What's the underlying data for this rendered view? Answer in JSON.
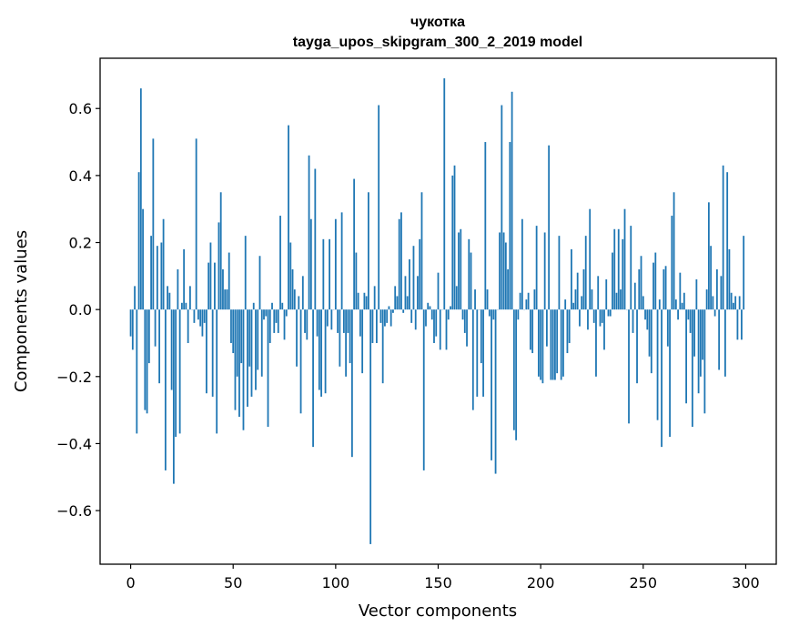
{
  "chart_data": {
    "type": "bar",
    "title": "чукотка",
    "subtitle": "tayga_upos_skipgram_300_2_2019 model",
    "xlabel": "Vector components",
    "ylabel": "Components values",
    "xlim": [
      -14.9,
      314.9
    ],
    "ylim": [
      -0.76,
      0.75
    ],
    "xticks": [
      0,
      50,
      100,
      150,
      200,
      250,
      300
    ],
    "xtick_labels": [
      "0",
      "50",
      "100",
      "150",
      "200",
      "250",
      "300"
    ],
    "yticks": [
      -0.6,
      -0.4,
      -0.2,
      0.0,
      0.2,
      0.4,
      0.6
    ],
    "ytick_labels": [
      "−0.6",
      "−0.4",
      "−0.2",
      "0.0",
      "0.2",
      "0.4",
      "0.6"
    ],
    "grid": false,
    "legend": "none",
    "bar_color": "#1f77b4",
    "values": [
      -0.08,
      -0.12,
      0.07,
      -0.37,
      0.41,
      0.66,
      0.3,
      -0.3,
      -0.31,
      -0.16,
      0.22,
      0.51,
      -0.11,
      0.19,
      -0.22,
      0.2,
      0.27,
      -0.48,
      0.07,
      0.05,
      -0.24,
      -0.52,
      -0.38,
      0.12,
      -0.37,
      0.02,
      0.18,
      0.02,
      -0.1,
      0.07,
      0.0,
      -0.04,
      0.51,
      -0.03,
      -0.05,
      -0.08,
      -0.04,
      -0.25,
      0.14,
      0.2,
      -0.26,
      0.14,
      -0.37,
      0.26,
      0.35,
      0.12,
      0.06,
      0.06,
      0.17,
      -0.1,
      -0.13,
      -0.3,
      -0.2,
      -0.32,
      -0.16,
      -0.36,
      0.22,
      -0.29,
      -0.17,
      -0.26,
      0.02,
      -0.24,
      -0.18,
      0.16,
      -0.2,
      -0.03,
      -0.02,
      -0.35,
      -0.1,
      0.02,
      -0.07,
      -0.04,
      -0.07,
      0.28,
      0.02,
      -0.09,
      -0.02,
      0.55,
      0.2,
      0.12,
      0.06,
      -0.17,
      0.04,
      -0.31,
      0.1,
      -0.07,
      -0.09,
      0.46,
      0.27,
      -0.41,
      0.42,
      -0.08,
      -0.24,
      -0.26,
      0.21,
      -0.25,
      -0.05,
      0.21,
      -0.06,
      0.0,
      0.27,
      -0.07,
      -0.17,
      0.29,
      -0.07,
      -0.2,
      -0.07,
      -0.16,
      -0.44,
      0.39,
      0.17,
      0.05,
      -0.08,
      -0.19,
      0.05,
      0.04,
      0.35,
      -0.7,
      -0.1,
      0.07,
      -0.1,
      0.61,
      -0.04,
      -0.22,
      -0.05,
      -0.04,
      0.01,
      -0.05,
      -0.01,
      0.07,
      0.04,
      0.27,
      0.29,
      -0.01,
      0.1,
      0.04,
      0.15,
      -0.04,
      0.19,
      -0.06,
      0.1,
      0.21,
      0.35,
      -0.48,
      -0.05,
      0.02,
      0.01,
      -0.03,
      -0.1,
      -0.08,
      0.11,
      -0.12,
      0.0,
      0.69,
      -0.12,
      -0.03,
      0.01,
      0.4,
      0.43,
      0.07,
      0.23,
      0.24,
      -0.03,
      -0.07,
      -0.11,
      0.21,
      0.17,
      -0.3,
      0.06,
      -0.26,
      0.0,
      -0.16,
      -0.26,
      0.5,
      0.06,
      -0.02,
      -0.45,
      -0.03,
      -0.49,
      0.0,
      0.23,
      0.61,
      0.23,
      0.2,
      0.12,
      0.5,
      0.65,
      -0.36,
      -0.39,
      -0.03,
      0.05,
      0.27,
      0.0,
      0.03,
      0.05,
      -0.12,
      -0.13,
      0.06,
      0.25,
      -0.2,
      -0.21,
      -0.22,
      0.23,
      -0.11,
      0.49,
      -0.21,
      -0.21,
      -0.21,
      -0.19,
      0.22,
      -0.21,
      -0.2,
      0.03,
      -0.13,
      -0.1,
      0.18,
      0.02,
      0.06,
      0.11,
      -0.05,
      0.04,
      0.12,
      0.22,
      -0.06,
      0.3,
      0.06,
      -0.04,
      -0.2,
      0.1,
      -0.05,
      -0.04,
      -0.12,
      0.09,
      -0.02,
      -0.02,
      0.17,
      0.24,
      0.05,
      0.24,
      0.06,
      0.21,
      0.3,
      0.0,
      -0.34,
      0.25,
      -0.07,
      0.08,
      -0.22,
      0.12,
      0.16,
      0.04,
      -0.03,
      -0.06,
      -0.14,
      -0.19,
      0.14,
      0.17,
      -0.33,
      0.03,
      -0.41,
      0.12,
      0.13,
      -0.11,
      -0.38,
      0.28,
      0.35,
      0.03,
      -0.03,
      0.11,
      0.02,
      0.05,
      -0.28,
      -0.03,
      -0.07,
      -0.35,
      -0.14,
      0.09,
      -0.25,
      -0.2,
      -0.15,
      -0.31,
      0.06,
      0.32,
      0.19,
      0.04,
      -0.02,
      0.12,
      -0.18,
      0.1,
      0.43,
      -0.2,
      0.41,
      0.18,
      0.05,
      0.02,
      0.04,
      -0.09,
      0.04,
      -0.09,
      0.22
    ]
  }
}
